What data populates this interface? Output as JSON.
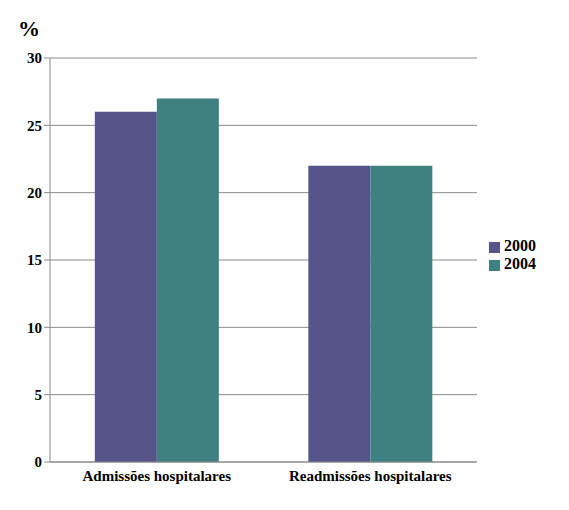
{
  "chart_data": {
    "type": "bar",
    "ylabel": "%",
    "categories": [
      "Admissões hospitalares",
      "Readmissões hospitalares"
    ],
    "series": [
      {
        "name": "2000",
        "color": "#565489",
        "values": [
          26,
          22
        ]
      },
      {
        "name": "2004",
        "color": "#3f8080",
        "values": [
          27,
          22
        ]
      }
    ],
    "ylim": [
      0,
      30
    ],
    "yticks": [
      0,
      5,
      10,
      15,
      20,
      25,
      30
    ],
    "grid": true,
    "legend": "right"
  }
}
